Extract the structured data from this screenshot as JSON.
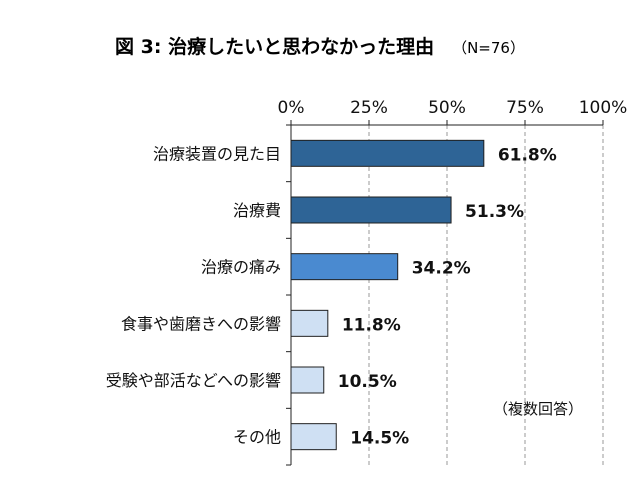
{
  "chart_data": {
    "type": "bar",
    "orientation": "horizontal",
    "title": "図 3:  治療したいと思わなかった理由",
    "subtitle": "（N=76）",
    "x_ticks": [
      "0%",
      "25%",
      "50%",
      "75%",
      "100%"
    ],
    "xlim": [
      0,
      100
    ],
    "grid": true,
    "categories": [
      "治療装置の見た目",
      "治療費",
      "治療の痛み",
      "食事や歯磨きへの影響",
      "受験や部活などへの影響",
      "その他"
    ],
    "values": [
      61.8,
      51.3,
      34.2,
      11.8,
      10.5,
      14.5
    ],
    "value_labels": [
      "61.8%",
      "51.3%",
      "34.2%",
      "11.8%",
      "10.5%",
      "14.5%"
    ],
    "bar_colors": [
      "#2e6496",
      "#2e6496",
      "#4a8ad0",
      "#cfe0f3",
      "#cfe0f3",
      "#cfe0f3"
    ],
    "note": "（複数回答）"
  }
}
